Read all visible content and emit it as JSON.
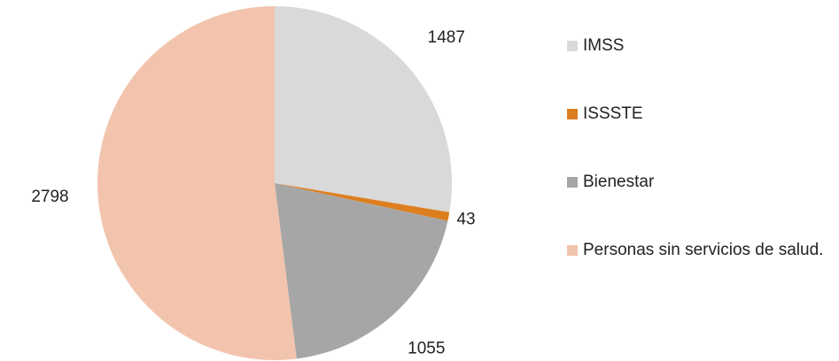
{
  "chart_data": {
    "type": "pie",
    "categories": [
      "IMSS",
      "ISSSTE",
      "Bienestar",
      "Personas sin servicios de salud."
    ],
    "values": [
      1487,
      43,
      1055,
      2798
    ],
    "colors": [
      "#d9d9d9",
      "#dd7f1f",
      "#a6a6a6",
      "#f2c4ae"
    ],
    "legend": "right"
  }
}
